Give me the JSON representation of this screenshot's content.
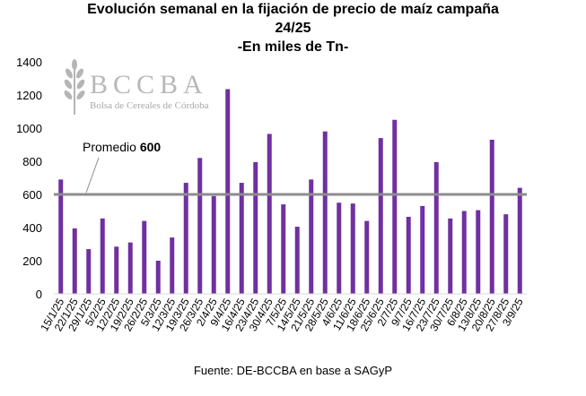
{
  "title": {
    "line1": "Evolución semanal en la fijación de precio de maíz campaña",
    "line2": "24/25",
    "line3": "-En miles de Tn-"
  },
  "watermark": {
    "name": "BCCBA",
    "subtitle": "Bolsa de Cereales de Córdoba"
  },
  "average": {
    "label": "Promedio",
    "value_text": "600"
  },
  "source": "Fuente: DE-BCCBA en base a SAGyP",
  "colors": {
    "bar": "#7030A0",
    "average_line": "#8C8C8C",
    "axis": "#D9D9D9"
  },
  "chart_data": {
    "type": "bar",
    "title": "Evolución semanal en la fijación de precio de maíz campaña 24/25 -En miles de Tn-",
    "xlabel": "",
    "ylabel": "",
    "ylim": [
      0,
      1400
    ],
    "yticks": [
      0,
      200,
      400,
      600,
      800,
      1000,
      1200,
      1400
    ],
    "grid": false,
    "categories": [
      "15/1/25",
      "22/1/25",
      "29/1/25",
      "5/2/25",
      "12/2/25",
      "19/2/25",
      "26/2/25",
      "5/3/25",
      "12/3/25",
      "19/3/25",
      "26/3/25",
      "2/4/25",
      "9/4/25",
      "16/4/25",
      "23/4/25",
      "30/4/25",
      "7/5/25",
      "14/5/25",
      "21/5/25",
      "28/5/25",
      "4/6/25",
      "11/6/25",
      "18/6/25",
      "25/6/25",
      "2/7/25",
      "9/7/25",
      "16/7/25",
      "23/7/25",
      "30/7/25",
      "6/8/25",
      "13/8/25",
      "20/8/25",
      "27/8/25",
      "3/9/25"
    ],
    "values": [
      690,
      395,
      270,
      455,
      285,
      310,
      440,
      200,
      340,
      670,
      820,
      590,
      1235,
      670,
      795,
      965,
      540,
      405,
      690,
      980,
      550,
      545,
      440,
      940,
      1050,
      465,
      530,
      795,
      455,
      500,
      505,
      930,
      480,
      640
    ],
    "average": 600
  }
}
